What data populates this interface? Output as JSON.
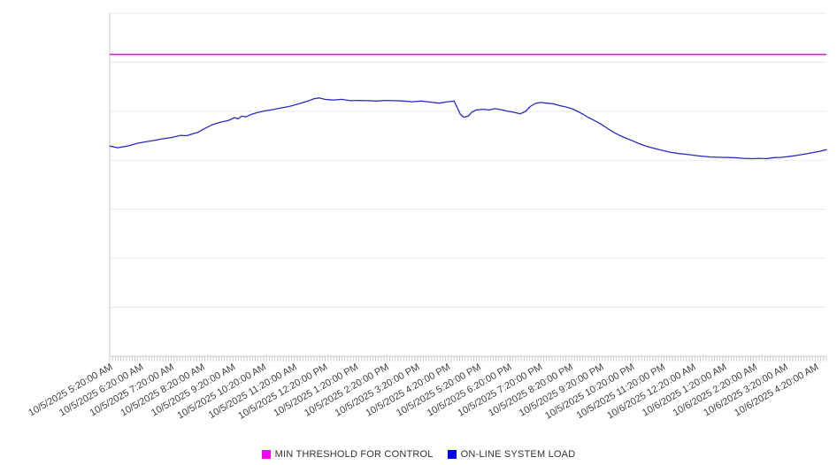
{
  "chart_data": {
    "type": "line",
    "title": "",
    "x_axis": {
      "labels": [
        "10/5/2025 5:20:00 AM",
        "10/5/2025 6:20:00 AM",
        "10/5/2025 7:20:00 AM",
        "10/5/2025 8:20:00 AM",
        "10/5/2025 9:20:00 AM",
        "10/5/2025 10:20:00 AM",
        "10/5/2025 11:20:00 AM",
        "10/5/2025 12:20:00 PM",
        "10/5/2025 1:20:00 PM",
        "10/5/2025 2:20:00 PM",
        "10/5/2025 3:20:00 PM",
        "10/5/2025 4:20:00 PM",
        "10/5/2025 5:20:00 PM",
        "10/5/2025 6:20:00 PM",
        "10/5/2025 7:20:00 PM",
        "10/5/2025 8:20:00 PM",
        "10/5/2025 9:20:00 PM",
        "10/5/2025 10:20:00 PM",
        "10/5/2025 11:20:00 PM",
        "10/6/2025 12:20:00 AM",
        "10/6/2025 1:20:00 AM",
        "10/6/2025 2:20:00 AM",
        "10/6/2025 3:20:00 AM",
        "10/6/2025 4:20:00 AM"
      ],
      "label_rotation_deg": -30,
      "hours_span": 23.35,
      "minor_tick_count": 256
    },
    "y_axis": {
      "tick_labels_visible": false,
      "relative_range": [
        0,
        100
      ],
      "gridline_count": 8
    },
    "series": [
      {
        "name": "MIN THRESHOLD FOR CONTROL",
        "type": "threshold-line",
        "color": "#C22CC2",
        "value": 88
      },
      {
        "name": "ON-LINE SYSTEM LOAD",
        "type": "line",
        "color": "#2929C4",
        "x_unit": "hours since 10/5/2025 5:20:00 AM",
        "y_unit": "relative load (y-axis unlabeled)",
        "points": [
          [
            0,
            61.3
          ],
          [
            0.26,
            60.8
          ],
          [
            0.58,
            61.3
          ],
          [
            0.87,
            62.0
          ],
          [
            1.15,
            62.5
          ],
          [
            1.44,
            62.9
          ],
          [
            1.73,
            63.4
          ],
          [
            2.02,
            63.8
          ],
          [
            2.31,
            64.4
          ],
          [
            2.51,
            64.3
          ],
          [
            2.68,
            64.8
          ],
          [
            2.88,
            65.3
          ],
          [
            3.06,
            66.2
          ],
          [
            3.34,
            67.5
          ],
          [
            3.63,
            68.3
          ],
          [
            3.86,
            68.7
          ],
          [
            4.07,
            69.6
          ],
          [
            4.18,
            69.2
          ],
          [
            4.3,
            70.0
          ],
          [
            4.44,
            69.8
          ],
          [
            4.58,
            70.4
          ],
          [
            4.79,
            71.0
          ],
          [
            5.02,
            71.5
          ],
          [
            5.31,
            71.9
          ],
          [
            5.59,
            72.4
          ],
          [
            5.88,
            72.9
          ],
          [
            6.17,
            73.6
          ],
          [
            6.46,
            74.4
          ],
          [
            6.66,
            75.1
          ],
          [
            6.83,
            75.3
          ],
          [
            7.01,
            74.9
          ],
          [
            7.27,
            74.7
          ],
          [
            7.55,
            74.9
          ],
          [
            7.84,
            74.5
          ],
          [
            8.13,
            74.6
          ],
          [
            8.42,
            74.5
          ],
          [
            8.71,
            74.4
          ],
          [
            9.0,
            74.6
          ],
          [
            9.28,
            74.5
          ],
          [
            9.57,
            74.4
          ],
          [
            9.86,
            74.2
          ],
          [
            10.15,
            74.4
          ],
          [
            10.44,
            74.1
          ],
          [
            10.73,
            73.8
          ],
          [
            11.01,
            74.2
          ],
          [
            11.22,
            74.4
          ],
          [
            11.33,
            72.4
          ],
          [
            11.42,
            70.6
          ],
          [
            11.53,
            69.7
          ],
          [
            11.68,
            70.0
          ],
          [
            11.79,
            71.1
          ],
          [
            11.94,
            71.8
          ],
          [
            12.17,
            72.0
          ],
          [
            12.37,
            71.8
          ],
          [
            12.54,
            72.2
          ],
          [
            12.74,
            71.9
          ],
          [
            12.95,
            71.5
          ],
          [
            13.18,
            71.1
          ],
          [
            13.38,
            70.7
          ],
          [
            13.55,
            71.4
          ],
          [
            13.7,
            72.8
          ],
          [
            13.87,
            73.7
          ],
          [
            14.04,
            74.0
          ],
          [
            14.24,
            73.8
          ],
          [
            14.45,
            73.6
          ],
          [
            14.65,
            73.1
          ],
          [
            14.85,
            72.7
          ],
          [
            15.05,
            72.2
          ],
          [
            15.25,
            71.4
          ],
          [
            15.43,
            70.5
          ],
          [
            15.6,
            69.6
          ],
          [
            15.8,
            68.7
          ],
          [
            16.0,
            67.7
          ],
          [
            16.21,
            66.5
          ],
          [
            16.41,
            65.3
          ],
          [
            16.61,
            64.4
          ],
          [
            16.84,
            63.5
          ],
          [
            17.04,
            62.8
          ],
          [
            17.24,
            62.0
          ],
          [
            17.47,
            61.3
          ],
          [
            17.7,
            60.7
          ],
          [
            17.96,
            60.1
          ],
          [
            18.25,
            59.5
          ],
          [
            18.54,
            59.1
          ],
          [
            18.86,
            58.8
          ],
          [
            19.2,
            58.4
          ],
          [
            19.58,
            58.1
          ],
          [
            19.95,
            58.0
          ],
          [
            20.33,
            57.9
          ],
          [
            20.67,
            57.7
          ],
          [
            20.93,
            57.6
          ],
          [
            21.16,
            57.7
          ],
          [
            21.4,
            57.6
          ],
          [
            21.63,
            57.9
          ],
          [
            21.86,
            58.0
          ],
          [
            22.09,
            58.2
          ],
          [
            22.35,
            58.5
          ],
          [
            22.61,
            58.9
          ],
          [
            22.87,
            59.3
          ],
          [
            23.1,
            59.7
          ],
          [
            23.35,
            60.2
          ]
        ]
      }
    ],
    "legend": {
      "position": "bottom-center",
      "items": [
        {
          "label": "MIN THRESHOLD FOR CONTROL",
          "swatch_color": "#FA00FA"
        },
        {
          "label": "ON-LINE SYSTEM LOAD",
          "swatch_color": "#0000F0"
        }
      ]
    },
    "colors": {
      "gridline": "#eaeaea",
      "axis": "#c8c8c8",
      "minor_tick": "#b8b8b8",
      "tick_label": "#3f3f3f"
    }
  }
}
